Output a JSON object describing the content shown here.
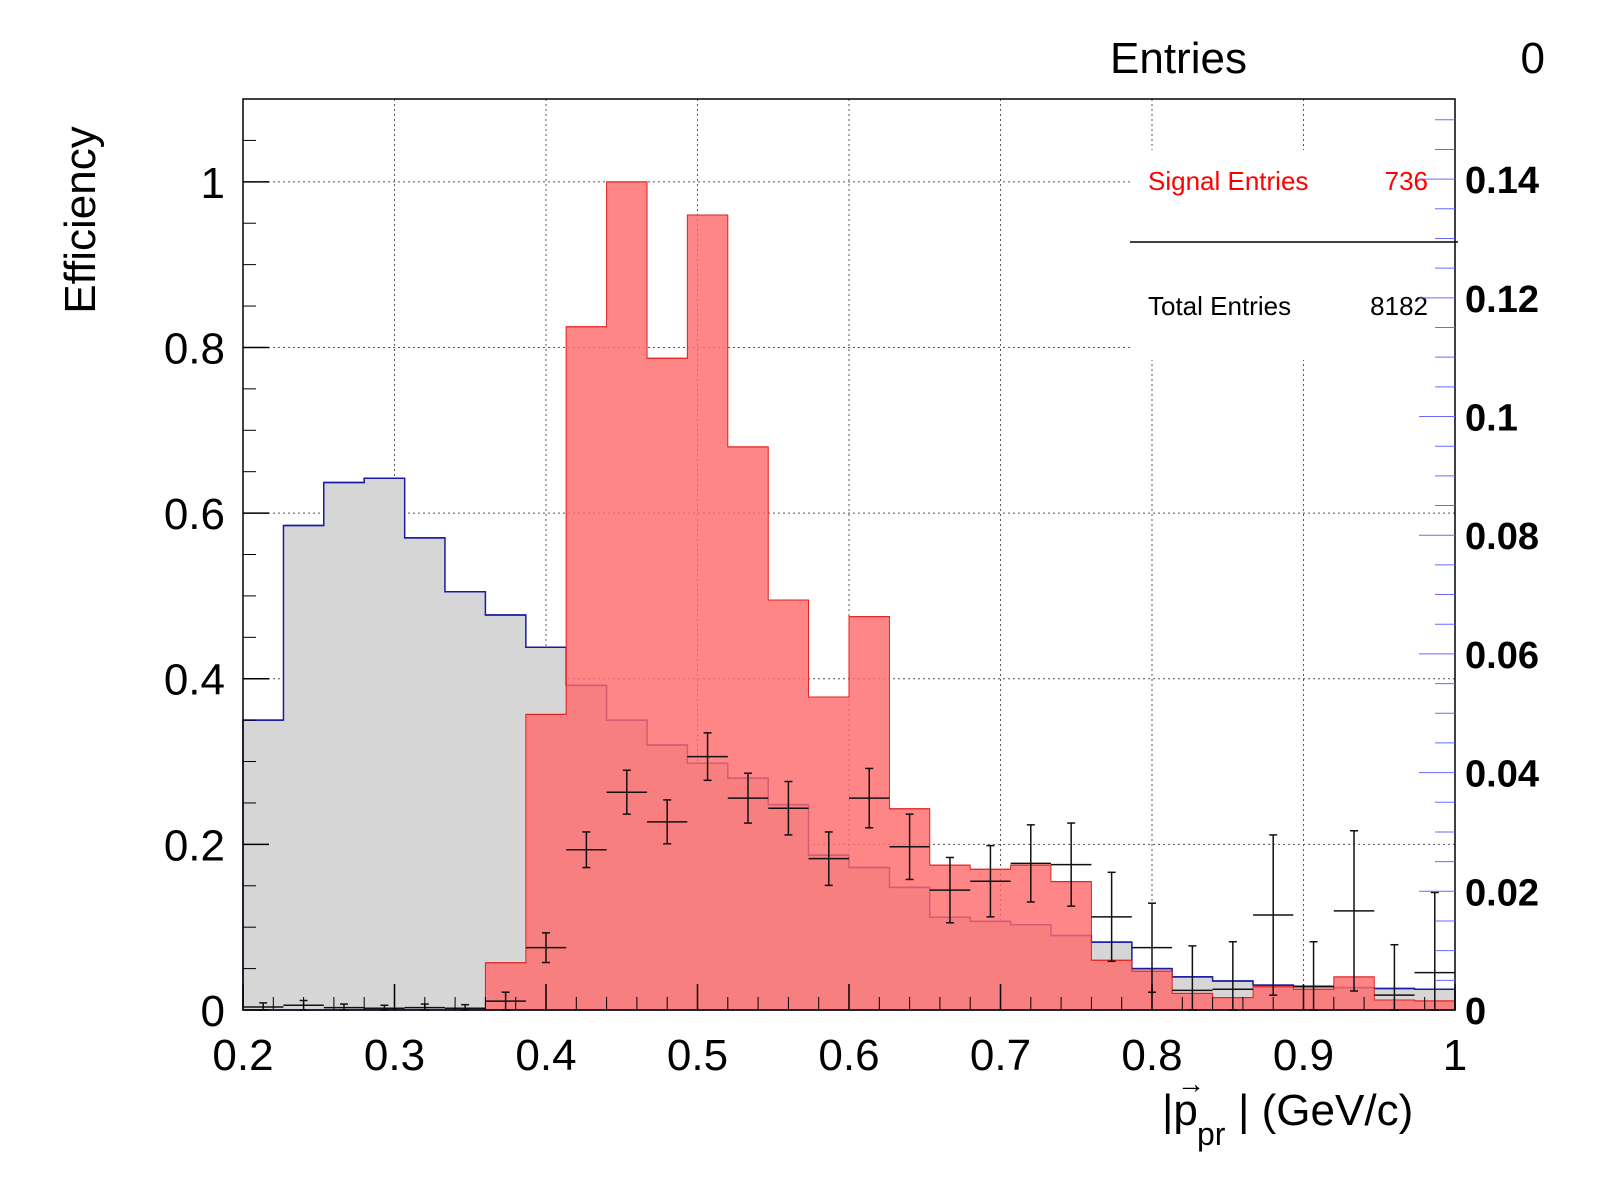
{
  "chart_data": {
    "type": "histogram",
    "x": {
      "label_main": "|p",
      "label_vector_mark": "→",
      "label_sub": "pr",
      "label_unit": "| (GeV/c)",
      "range": [
        0.2,
        1.0
      ],
      "ticks": [
        "0.2",
        "0.3",
        "0.4",
        "0.5",
        "0.6",
        "0.7",
        "0.8",
        "0.9",
        "1"
      ]
    },
    "y_left": {
      "label": "Efficiency",
      "range": [
        0,
        1.1
      ],
      "ticks": [
        "0",
        "0.2",
        "0.4",
        "0.6",
        "0.8",
        "1"
      ]
    },
    "y_right": {
      "range": [
        0,
        0.1535
      ],
      "ticks": [
        "0",
        "0.02",
        "0.04",
        "0.06",
        "0.08",
        "0.1",
        "0.12",
        "0.14"
      ]
    },
    "bin_edges": [
      0.2,
      0.2267,
      0.2533,
      0.28,
      0.3067,
      0.3333,
      0.36,
      0.3867,
      0.4133,
      0.44,
      0.4667,
      0.4933,
      0.52,
      0.5467,
      0.5733,
      0.6,
      0.6267,
      0.6533,
      0.68,
      0.7067,
      0.7333,
      0.76,
      0.7867,
      0.8133,
      0.84,
      0.8667,
      0.8933,
      0.92,
      0.9467,
      0.9733,
      1.0
    ],
    "grid": true,
    "series": [
      {
        "name": "Total",
        "axis": "left",
        "style": "filled-step",
        "fill": "#d6d6d6",
        "line": "#1a1aa6",
        "values": [
          0.35,
          0.585,
          0.637,
          0.642,
          0.57,
          0.505,
          0.477,
          0.438,
          0.392,
          0.35,
          0.32,
          0.298,
          0.28,
          0.248,
          0.187,
          0.172,
          0.148,
          0.112,
          0.107,
          0.103,
          0.09,
          0.082,
          0.05,
          0.04,
          0.035,
          0.03,
          0.028,
          0.027,
          0.026,
          0.025
        ]
      },
      {
        "name": "Signal",
        "axis": "left",
        "style": "filled-step",
        "fill": "#ff6b6b",
        "fill_opacity": 0.82,
        "line": "#e02020",
        "values": [
          0,
          0,
          0,
          0,
          0,
          0,
          0.057,
          0.357,
          0.825,
          1.0,
          0.787,
          0.96,
          0.68,
          0.495,
          0.378,
          0.475,
          0.243,
          0.175,
          0.17,
          0.175,
          0.155,
          0.06,
          0.047,
          0.02,
          0.015,
          0.028,
          0.025,
          0.04,
          0.012,
          0.011
        ]
      },
      {
        "name": "Efficiency",
        "axis": "right",
        "style": "errorbar",
        "color": "#111111",
        "values": [
          0.0005,
          0.0008,
          0.0004,
          0.0003,
          0.0004,
          0.0003,
          0.0015,
          0.0105,
          0.027,
          0.0367,
          0.0317,
          0.0427,
          0.0357,
          0.034,
          0.0255,
          0.0357,
          0.0275,
          0.0202,
          0.0217,
          0.0247,
          0.0245,
          0.0157,
          0.0105,
          0.0033,
          0.0035,
          0.016,
          0.004,
          0.0167,
          0.0025,
          0.0063
        ],
        "errors": [
          0.0007,
          0.0008,
          0.0006,
          0.0005,
          0.0006,
          0.0006,
          0.0015,
          0.0025,
          0.003,
          0.0037,
          0.0037,
          0.004,
          0.0042,
          0.0045,
          0.0045,
          0.005,
          0.0055,
          0.0055,
          0.006,
          0.0065,
          0.007,
          0.0075,
          0.0075,
          0.0075,
          0.008,
          0.0135,
          0.0075,
          0.0135,
          0.0085,
          0.0135
        ]
      }
    ],
    "stats_box": {
      "label": "Entries",
      "value": "0"
    },
    "legend": [
      {
        "label": "Signal Entries",
        "value": "736",
        "color": "#ff0000"
      },
      {
        "label": "Total  Entries",
        "value": "8182",
        "color": "#000000"
      }
    ]
  }
}
